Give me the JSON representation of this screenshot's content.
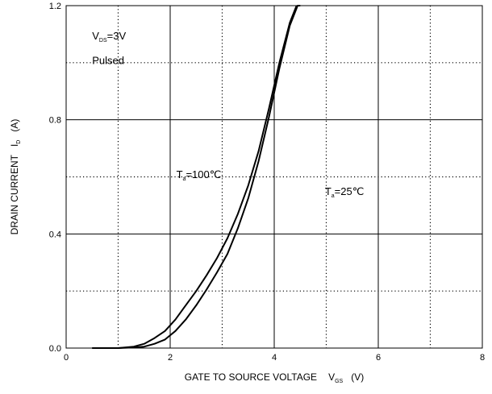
{
  "chart_data": {
    "type": "line",
    "title": "",
    "xlabel": {
      "main": "GATE TO SOURCE VOLTAGE",
      "symbol": "V",
      "subscript": "GS",
      "unit": "(V)"
    },
    "ylabel": {
      "main": "DRAIN CURRENT",
      "symbol": "I",
      "subscript": "D",
      "unit": "(A)"
    },
    "xlim": [
      0,
      8
    ],
    "ylim": [
      0,
      1.2
    ],
    "xticks": [
      0,
      2,
      4,
      6,
      8
    ],
    "xtick_labels": [
      "0",
      "2",
      "4",
      "6",
      "8"
    ],
    "yticks": [
      0,
      0.4,
      0.8,
      1.2
    ],
    "ytick_labels": [
      "0.0",
      "0.4",
      "0.8",
      "1.2"
    ],
    "minor_grid_x": [
      1,
      3,
      5,
      7
    ],
    "minor_grid_y": [
      0.2,
      0.6,
      1.0
    ],
    "grid": true,
    "conditions": {
      "line1": {
        "symbol": "V",
        "subscript": "DS",
        "rest": "=3V"
      },
      "line2": "Pulsed"
    },
    "series": [
      {
        "name": {
          "symbol": "T",
          "subscript": "a",
          "rest": "=100℃"
        },
        "x": [
          0.5,
          1.0,
          1.3,
          1.5,
          1.7,
          1.9,
          2.1,
          2.3,
          2.5,
          2.7,
          2.9,
          3.1,
          3.3,
          3.5,
          3.7,
          3.9,
          4.1,
          4.3,
          4.43
        ],
        "y": [
          0.0,
          0.0,
          0.005,
          0.015,
          0.035,
          0.06,
          0.1,
          0.15,
          0.2,
          0.255,
          0.315,
          0.385,
          0.47,
          0.57,
          0.69,
          0.84,
          1.0,
          1.14,
          1.2
        ]
      },
      {
        "name": {
          "symbol": "T",
          "subscript": "a",
          "rest": "=25℃"
        },
        "x": [
          0.5,
          1.0,
          1.3,
          1.5,
          1.7,
          1.9,
          2.1,
          2.3,
          2.5,
          2.7,
          2.9,
          3.1,
          3.3,
          3.5,
          3.7,
          3.9,
          4.1,
          4.3,
          4.45,
          4.5
        ],
        "y": [
          0.0,
          0.0,
          0.002,
          0.005,
          0.015,
          0.03,
          0.06,
          0.1,
          0.15,
          0.205,
          0.265,
          0.33,
          0.42,
          0.525,
          0.655,
          0.81,
          0.98,
          1.13,
          1.2,
          1.2
        ]
      }
    ],
    "annotations": [
      {
        "series": 0,
        "at": [
          2.55,
          0.61
        ]
      },
      {
        "series": 1,
        "at": [
          5.35,
          0.55
        ]
      }
    ],
    "colors": {
      "line": "#000000",
      "grid": "#000000",
      "background": "#ffffff"
    }
  }
}
